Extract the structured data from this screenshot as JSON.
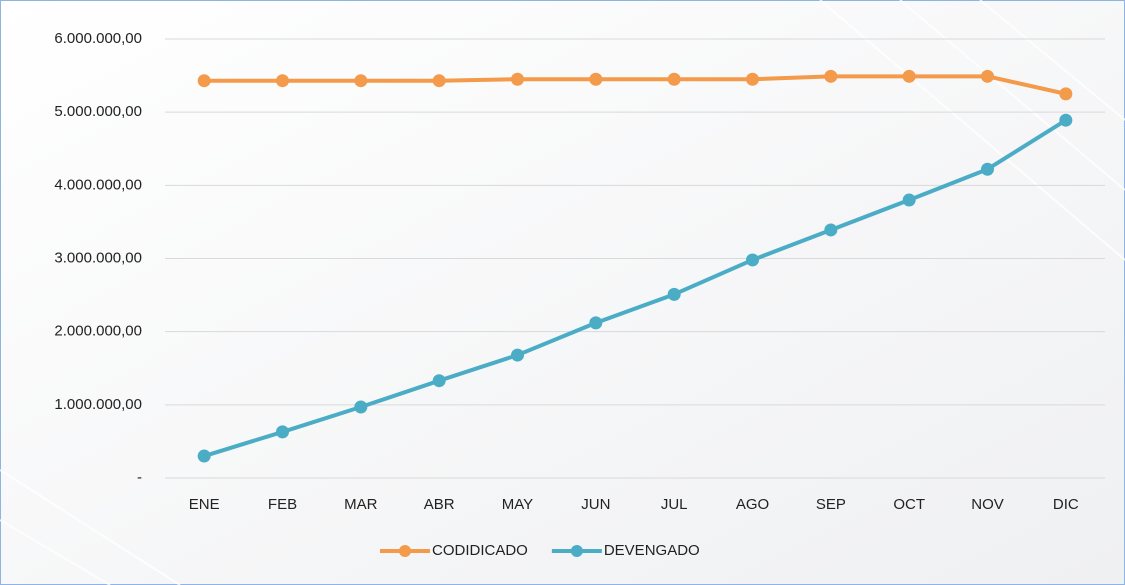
{
  "chart_data": {
    "type": "line",
    "categories": [
      "ENE",
      "FEB",
      "MAR",
      "ABR",
      "MAY",
      "JUN",
      "JUL",
      "AGO",
      "SEP",
      "OCT",
      "NOV",
      "DIC"
    ],
    "series": [
      {
        "name": "CODIDICADO",
        "color": "#f39a4b",
        "values": [
          5430000,
          5430000,
          5430000,
          5430000,
          5450000,
          5450000,
          5450000,
          5450000,
          5490000,
          5490000,
          5490000,
          5250000
        ]
      },
      {
        "name": "DEVENGADO",
        "color": "#4bacc6",
        "values": [
          300000,
          630000,
          970000,
          1330000,
          1680000,
          2120000,
          2510000,
          2980000,
          3390000,
          3800000,
          4220000,
          4890000
        ]
      }
    ],
    "ylim": [
      0,
      6000000
    ],
    "yticks": [
      {
        "value": 0,
        "label": "-"
      },
      {
        "value": 1000000,
        "label": "1.000.000,00"
      },
      {
        "value": 2000000,
        "label": "2.000.000,00"
      },
      {
        "value": 3000000,
        "label": "3.000.000,00"
      },
      {
        "value": 4000000,
        "label": "4.000.000,00"
      },
      {
        "value": 5000000,
        "label": "5.000.000,00"
      },
      {
        "value": 6000000,
        "label": "6.000.000,00"
      }
    ],
    "grid": true,
    "legend": "bottom"
  }
}
